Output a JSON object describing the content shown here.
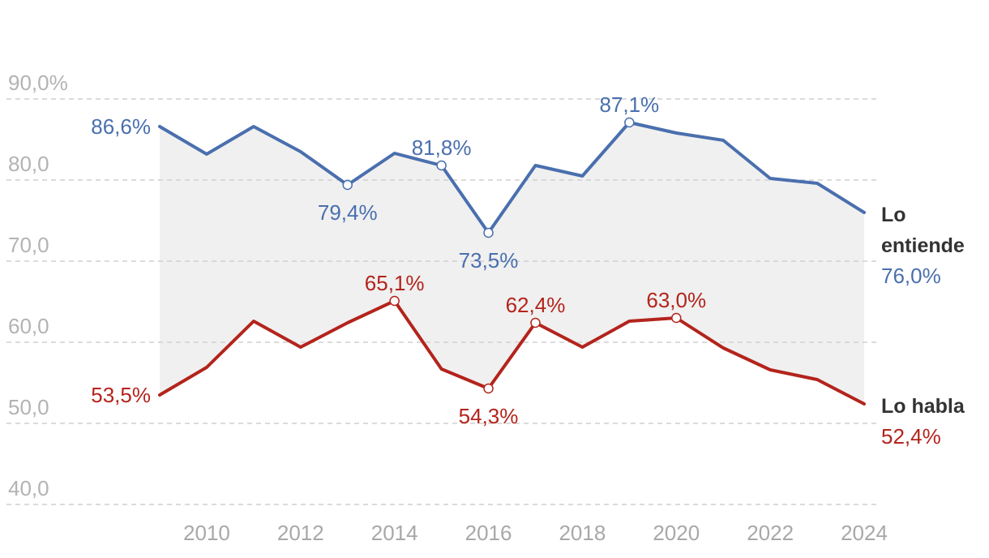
{
  "chart_data": {
    "type": "line",
    "title": "",
    "xlabel": "",
    "ylabel": "",
    "ylim": [
      40,
      90
    ],
    "y_ticks": [
      {
        "value": 90,
        "label": "90,0%"
      },
      {
        "value": 80,
        "label": "80,0"
      },
      {
        "value": 70,
        "label": "70,0"
      },
      {
        "value": 60,
        "label": "60,0"
      },
      {
        "value": 50,
        "label": "50,0"
      },
      {
        "value": 40,
        "label": "40,0"
      }
    ],
    "x": [
      2009,
      2010,
      2011,
      2012,
      2013,
      2014,
      2015,
      2016,
      2017,
      2018,
      2019,
      2020,
      2021,
      2022,
      2023,
      2024
    ],
    "x_ticks": [
      {
        "value": 2010,
        "label": "2010"
      },
      {
        "value": 2012,
        "label": "2012"
      },
      {
        "value": 2014,
        "label": "2014"
      },
      {
        "value": 2016,
        "label": "2016"
      },
      {
        "value": 2018,
        "label": "2018"
      },
      {
        "value": 2020,
        "label": "2020"
      },
      {
        "value": 2022,
        "label": "2022"
      },
      {
        "value": 2024,
        "label": "2024"
      }
    ],
    "band_between_series": true,
    "band_color": "#f0f0f0",
    "series": [
      {
        "key": "entiende",
        "name_lines": [
          "Lo",
          "entiende"
        ],
        "final_label": "76,0%",
        "color": "#4a6fae",
        "values": [
          86.6,
          83.2,
          86.6,
          83.5,
          79.4,
          83.3,
          81.8,
          73.5,
          81.8,
          80.5,
          87.1,
          85.8,
          84.9,
          80.2,
          79.6,
          76.0
        ],
        "annotations": [
          {
            "x": 2009,
            "label": "86,6%",
            "placement": "left",
            "marker": false
          },
          {
            "x": 2013,
            "label": "79,4%",
            "placement": "below",
            "marker": true
          },
          {
            "x": 2015,
            "label": "81,8%",
            "placement": "above",
            "marker": true
          },
          {
            "x": 2016,
            "label": "73,5%",
            "placement": "below",
            "marker": true
          },
          {
            "x": 2019,
            "label": "87,1%",
            "placement": "above",
            "marker": true
          }
        ]
      },
      {
        "key": "habla",
        "name_lines": [
          "Lo habla"
        ],
        "final_label": "52,4%",
        "color": "#b3241c",
        "values": [
          53.5,
          56.9,
          62.6,
          59.4,
          62.4,
          65.1,
          56.7,
          54.3,
          62.4,
          59.4,
          62.6,
          63.0,
          59.3,
          56.6,
          55.4,
          52.4
        ],
        "annotations": [
          {
            "x": 2009,
            "label": "53,5%",
            "placement": "left",
            "marker": false
          },
          {
            "x": 2014,
            "label": "65,1%",
            "placement": "above",
            "marker": true
          },
          {
            "x": 2016,
            "label": "54,3%",
            "placement": "below",
            "marker": true
          },
          {
            "x": 2017,
            "label": "62,4%",
            "placement": "above",
            "marker": true
          },
          {
            "x": 2020,
            "label": "63,0%",
            "placement": "above",
            "marker": true
          }
        ]
      }
    ]
  }
}
